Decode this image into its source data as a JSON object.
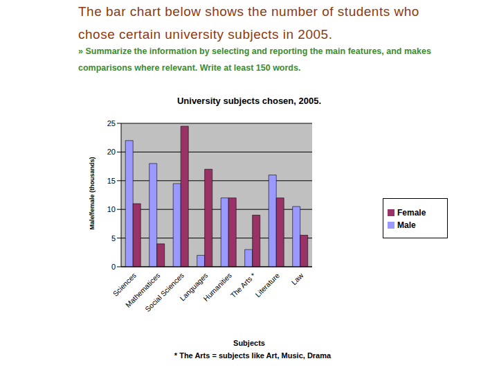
{
  "chart_data": {
    "type": "bar",
    "title": "University subjects chosen, 2005.",
    "annotations": [
      "The bar chart below shows the number of students who chose certain university subjects in 2005.",
      "» Summarize the information by selecting and reporting the main features, and makes comparisons where relevant. Write at least 150 words.",
      "* The Arts = subjects like Art, Music, Drama"
    ],
    "x_label": "Subjects",
    "y_label": "Male/female (thousands)",
    "categories": [
      "Sciences",
      "Mathematices",
      "Social Sciences",
      "Languages",
      "Humanities",
      "The Arts *",
      "Literature",
      "Law"
    ],
    "series": [
      {
        "name": "Male",
        "color": "#9999ff",
        "values": [
          22,
          18,
          14.5,
          2,
          12,
          3,
          16,
          10.5
        ]
      },
      {
        "name": "Female",
        "color": "#993366",
        "values": [
          11,
          4,
          24.5,
          17,
          12,
          9,
          12,
          5.5
        ]
      }
    ],
    "ylim": [
      0,
      25
    ],
    "yticks": [
      0,
      5,
      10,
      15,
      20,
      25
    ],
    "grid": true,
    "legend": "right"
  }
}
